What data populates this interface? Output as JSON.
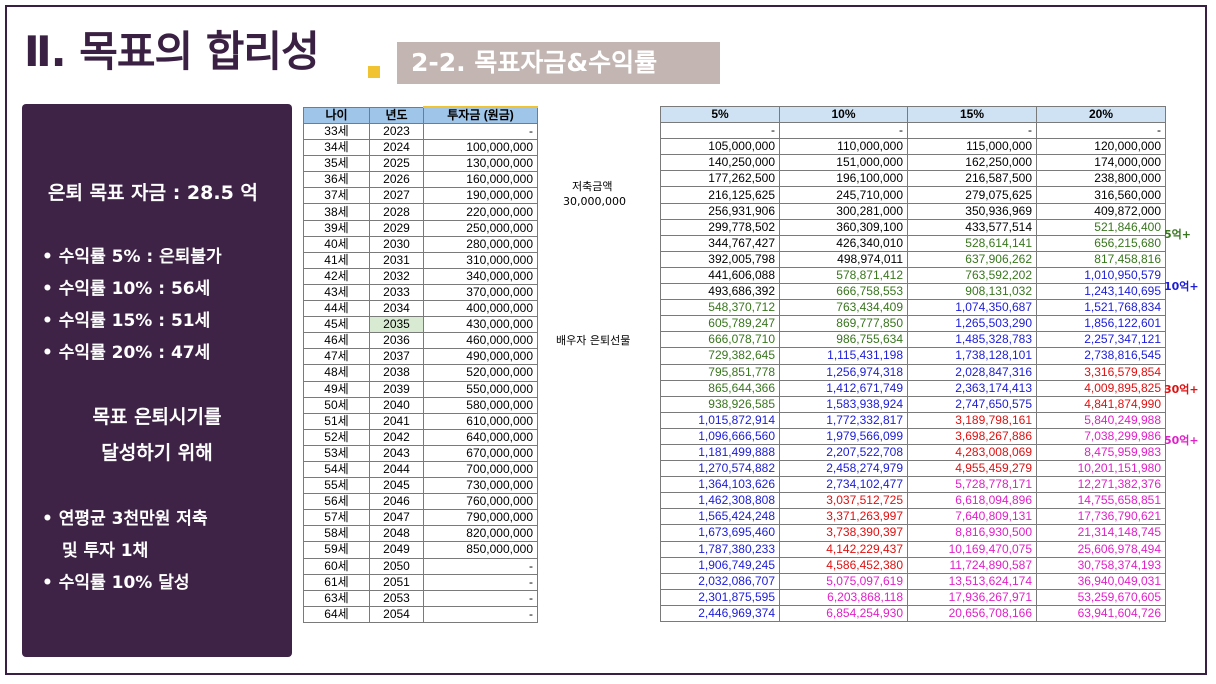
{
  "header": {
    "title": "Ⅱ. 목표의 합리성",
    "subtitle": "2-2. 목표자금&수익률"
  },
  "sidebar": {
    "goal": "은퇴 목표 자금 : 28.5 억",
    "rates": [
      "수익률 5% : 은퇴불가",
      "수익률 10% : 56세",
      "수익률 15% : 51세",
      "수익률 20% : 47세"
    ],
    "middle_line1": "목표 은퇴시기를",
    "middle_line2": "달성하기 위해",
    "plan_line1": "연평균 3천만원 저축",
    "plan_line2": "및 투자 1채",
    "plan_line3": "수익률 10% 달성"
  },
  "investment_table": {
    "headers": [
      "나이",
      "년도",
      "투자금 (원금)"
    ],
    "highlight_row": 12,
    "rows": [
      [
        "33세",
        "2023",
        "-"
      ],
      [
        "34세",
        "2024",
        "100,000,000"
      ],
      [
        "35세",
        "2025",
        "130,000,000"
      ],
      [
        "36세",
        "2026",
        "160,000,000"
      ],
      [
        "37세",
        "2027",
        "190,000,000"
      ],
      [
        "38세",
        "2028",
        "220,000,000"
      ],
      [
        "39세",
        "2029",
        "250,000,000"
      ],
      [
        "40세",
        "2030",
        "280,000,000"
      ],
      [
        "41세",
        "2031",
        "310,000,000"
      ],
      [
        "42세",
        "2032",
        "340,000,000"
      ],
      [
        "43세",
        "2033",
        "370,000,000"
      ],
      [
        "44세",
        "2034",
        "400,000,000"
      ],
      [
        "45세",
        "2035",
        "430,000,000"
      ],
      [
        "46세",
        "2036",
        "460,000,000"
      ],
      [
        "47세",
        "2037",
        "490,000,000"
      ],
      [
        "48세",
        "2038",
        "520,000,000"
      ],
      [
        "49세",
        "2039",
        "550,000,000"
      ],
      [
        "50세",
        "2040",
        "580,000,000"
      ],
      [
        "51세",
        "2041",
        "610,000,000"
      ],
      [
        "52세",
        "2042",
        "640,000,000"
      ],
      [
        "53세",
        "2043",
        "670,000,000"
      ],
      [
        "54세",
        "2044",
        "700,000,000"
      ],
      [
        "55세",
        "2045",
        "730,000,000"
      ],
      [
        "56세",
        "2046",
        "760,000,000"
      ],
      [
        "57세",
        "2047",
        "790,000,000"
      ],
      [
        "58세",
        "2048",
        "820,000,000"
      ],
      [
        "59세",
        "2049",
        "850,000,000"
      ],
      [
        "60세",
        "2050",
        "-"
      ],
      [
        "61세",
        "2051",
        "-"
      ],
      [
        "63세",
        "2053",
        "-"
      ],
      [
        "64세",
        "2054",
        "-"
      ]
    ]
  },
  "notes": {
    "savings_label": "저축금액",
    "savings_value": "30,000,000",
    "spouse_note": "배우자 은퇴선물"
  },
  "return_table": {
    "headers": [
      "5%",
      "10%",
      "15%",
      "20%"
    ],
    "colors": {
      "black": "#000000",
      "green": "#38761d",
      "blue": "#1c1cd6",
      "red": "#e01010",
      "magenta": "#e020c8"
    },
    "rows": [
      [
        [
          "-",
          "black"
        ],
        [
          "-",
          "black"
        ],
        [
          "-",
          "black"
        ],
        [
          "-",
          "black"
        ]
      ],
      [
        [
          "105,000,000",
          "black"
        ],
        [
          "110,000,000",
          "black"
        ],
        [
          "115,000,000",
          "black"
        ],
        [
          "120,000,000",
          "black"
        ]
      ],
      [
        [
          "140,250,000",
          "black"
        ],
        [
          "151,000,000",
          "black"
        ],
        [
          "162,250,000",
          "black"
        ],
        [
          "174,000,000",
          "black"
        ]
      ],
      [
        [
          "177,262,500",
          "black"
        ],
        [
          "196,100,000",
          "black"
        ],
        [
          "216,587,500",
          "black"
        ],
        [
          "238,800,000",
          "black"
        ]
      ],
      [
        [
          "216,125,625",
          "black"
        ],
        [
          "245,710,000",
          "black"
        ],
        [
          "279,075,625",
          "black"
        ],
        [
          "316,560,000",
          "black"
        ]
      ],
      [
        [
          "256,931,906",
          "black"
        ],
        [
          "300,281,000",
          "black"
        ],
        [
          "350,936,969",
          "black"
        ],
        [
          "409,872,000",
          "black"
        ]
      ],
      [
        [
          "299,778,502",
          "black"
        ],
        [
          "360,309,100",
          "black"
        ],
        [
          "433,577,514",
          "black"
        ],
        [
          "521,846,400",
          "green"
        ]
      ],
      [
        [
          "344,767,427",
          "black"
        ],
        [
          "426,340,010",
          "black"
        ],
        [
          "528,614,141",
          "green"
        ],
        [
          "656,215,680",
          "green"
        ]
      ],
      [
        [
          "392,005,798",
          "black"
        ],
        [
          "498,974,011",
          "black"
        ],
        [
          "637,906,262",
          "green"
        ],
        [
          "817,458,816",
          "green"
        ]
      ],
      [
        [
          "441,606,088",
          "black"
        ],
        [
          "578,871,412",
          "green"
        ],
        [
          "763,592,202",
          "green"
        ],
        [
          "1,010,950,579",
          "blue"
        ]
      ],
      [
        [
          "493,686,392",
          "black"
        ],
        [
          "666,758,553",
          "green"
        ],
        [
          "908,131,032",
          "green"
        ],
        [
          "1,243,140,695",
          "blue"
        ]
      ],
      [
        [
          "548,370,712",
          "green"
        ],
        [
          "763,434,409",
          "green"
        ],
        [
          "1,074,350,687",
          "blue"
        ],
        [
          "1,521,768,834",
          "blue"
        ]
      ],
      [
        [
          "605,789,247",
          "green"
        ],
        [
          "869,777,850",
          "green"
        ],
        [
          "1,265,503,290",
          "blue"
        ],
        [
          "1,856,122,601",
          "blue"
        ]
      ],
      [
        [
          "666,078,710",
          "green"
        ],
        [
          "986,755,634",
          "green"
        ],
        [
          "1,485,328,783",
          "blue"
        ],
        [
          "2,257,347,121",
          "blue"
        ]
      ],
      [
        [
          "729,382,645",
          "green"
        ],
        [
          "1,115,431,198",
          "blue"
        ],
        [
          "1,738,128,101",
          "blue"
        ],
        [
          "2,738,816,545",
          "blue"
        ]
      ],
      [
        [
          "795,851,778",
          "green"
        ],
        [
          "1,256,974,318",
          "blue"
        ],
        [
          "2,028,847,316",
          "blue"
        ],
        [
          "3,316,579,854",
          "red"
        ]
      ],
      [
        [
          "865,644,366",
          "green"
        ],
        [
          "1,412,671,749",
          "blue"
        ],
        [
          "2,363,174,413",
          "blue"
        ],
        [
          "4,009,895,825",
          "red"
        ]
      ],
      [
        [
          "938,926,585",
          "green"
        ],
        [
          "1,583,938,924",
          "blue"
        ],
        [
          "2,747,650,575",
          "blue"
        ],
        [
          "4,841,874,990",
          "red"
        ]
      ],
      [
        [
          "1,015,872,914",
          "blue"
        ],
        [
          "1,772,332,817",
          "blue"
        ],
        [
          "3,189,798,161",
          "red"
        ],
        [
          "5,840,249,988",
          "magenta"
        ]
      ],
      [
        [
          "1,096,666,560",
          "blue"
        ],
        [
          "1,979,566,099",
          "blue"
        ],
        [
          "3,698,267,886",
          "red"
        ],
        [
          "7,038,299,986",
          "magenta"
        ]
      ],
      [
        [
          "1,181,499,888",
          "blue"
        ],
        [
          "2,207,522,708",
          "blue"
        ],
        [
          "4,283,008,069",
          "red"
        ],
        [
          "8,475,959,983",
          "magenta"
        ]
      ],
      [
        [
          "1,270,574,882",
          "blue"
        ],
        [
          "2,458,274,979",
          "blue"
        ],
        [
          "4,955,459,279",
          "red"
        ],
        [
          "10,201,151,980",
          "magenta"
        ]
      ],
      [
        [
          "1,364,103,626",
          "blue"
        ],
        [
          "2,734,102,477",
          "blue"
        ],
        [
          "5,728,778,171",
          "magenta"
        ],
        [
          "12,271,382,376",
          "magenta"
        ]
      ],
      [
        [
          "1,462,308,808",
          "blue"
        ],
        [
          "3,037,512,725",
          "red"
        ],
        [
          "6,618,094,896",
          "magenta"
        ],
        [
          "14,755,658,851",
          "magenta"
        ]
      ],
      [
        [
          "1,565,424,248",
          "blue"
        ],
        [
          "3,371,263,997",
          "red"
        ],
        [
          "7,640,809,131",
          "magenta"
        ],
        [
          "17,736,790,621",
          "magenta"
        ]
      ],
      [
        [
          "1,673,695,460",
          "blue"
        ],
        [
          "3,738,390,397",
          "red"
        ],
        [
          "8,816,930,500",
          "magenta"
        ],
        [
          "21,314,148,745",
          "magenta"
        ]
      ],
      [
        [
          "1,787,380,233",
          "blue"
        ],
        [
          "4,142,229,437",
          "red"
        ],
        [
          "10,169,470,075",
          "magenta"
        ],
        [
          "25,606,978,494",
          "magenta"
        ]
      ],
      [
        [
          "1,906,749,245",
          "blue"
        ],
        [
          "4,586,452,380",
          "red"
        ],
        [
          "11,724,890,587",
          "magenta"
        ],
        [
          "30,758,374,193",
          "magenta"
        ]
      ],
      [
        [
          "2,032,086,707",
          "blue"
        ],
        [
          "5,075,097,619",
          "magenta"
        ],
        [
          "13,513,624,174",
          "magenta"
        ],
        [
          "36,940,049,031",
          "magenta"
        ]
      ],
      [
        [
          "2,301,875,595",
          "blue"
        ],
        [
          "6,203,868,118",
          "magenta"
        ],
        [
          "17,936,267,971",
          "magenta"
        ],
        [
          "53,259,670,605",
          "magenta"
        ]
      ],
      [
        [
          "2,446,969,374",
          "blue"
        ],
        [
          "6,854,254,930",
          "magenta"
        ],
        [
          "20,656,708,166",
          "magenta"
        ],
        [
          "63,941,604,726",
          "magenta"
        ]
      ]
    ]
  },
  "markers": [
    {
      "text": "5억+",
      "color": "green",
      "row": 6
    },
    {
      "text": "10억+",
      "color": "blue",
      "row": 9
    },
    {
      "text": "30억+",
      "color": "red",
      "row": 15
    },
    {
      "text": "50억+",
      "color": "magenta",
      "row": 18
    }
  ]
}
